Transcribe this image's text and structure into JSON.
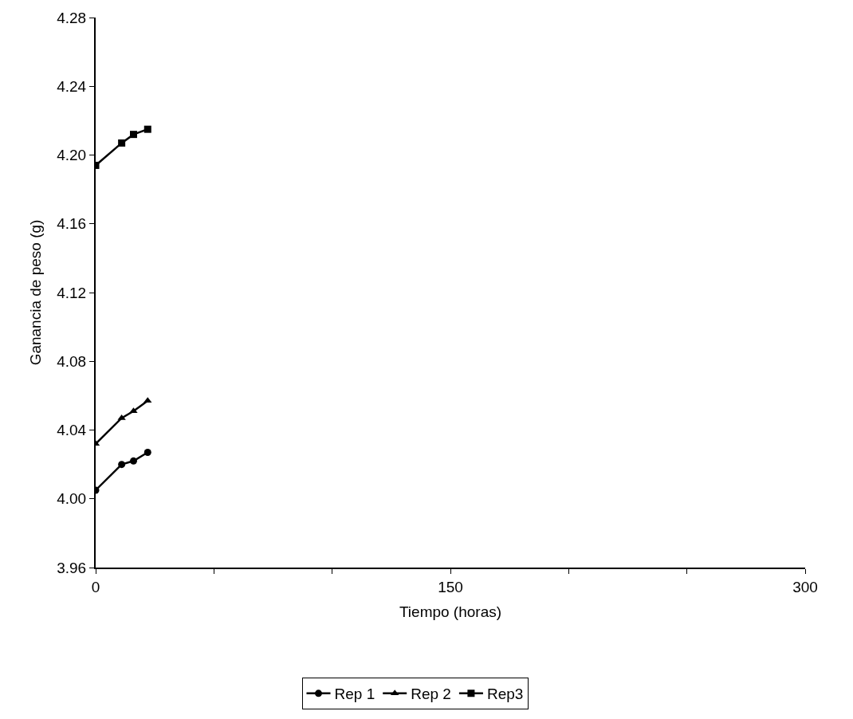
{
  "chart_data": {
    "type": "line",
    "xlabel": "Tiempo (horas)",
    "ylabel": "Ganancia de peso (g)",
    "x": [
      0,
      11,
      16,
      22
    ],
    "series": [
      {
        "name": "Rep 1",
        "color": "#000000",
        "marker": "circle",
        "values": [
          4.005,
          4.02,
          4.022,
          4.027
        ]
      },
      {
        "name": "Rep 2",
        "color": "#000000",
        "marker": "triangle",
        "values": [
          4.032,
          4.047,
          4.051,
          4.057
        ]
      },
      {
        "name": "Rep3",
        "color": "#000000",
        "marker": "square",
        "values": [
          4.194,
          4.207,
          4.212,
          4.215
        ]
      }
    ],
    "xlim": [
      0,
      300
    ],
    "xticks": [
      0,
      {
        "value": 50,
        "label": null
      },
      {
        "value": 100,
        "label": null
      },
      150,
      {
        "value": 200,
        "label": null
      },
      {
        "value": 250,
        "label": null
      },
      300
    ],
    "ylim": [
      3.96,
      4.28
    ],
    "yticks": [
      {
        "value": 3.96,
        "label": "3.96"
      },
      {
        "value": 4.0,
        "label": "4.00"
      },
      {
        "value": 4.04,
        "label": "4.04"
      },
      {
        "value": 4.08,
        "label": "4.08"
      },
      {
        "value": 4.12,
        "label": "4.12"
      },
      {
        "value": 4.16,
        "label": "4.16"
      },
      {
        "value": 4.2,
        "label": "4.20"
      },
      {
        "value": 4.24,
        "label": "4.24"
      },
      {
        "value": 4.28,
        "label": "4.28"
      }
    ],
    "legend": "bottom",
    "line_style": "solid"
  }
}
